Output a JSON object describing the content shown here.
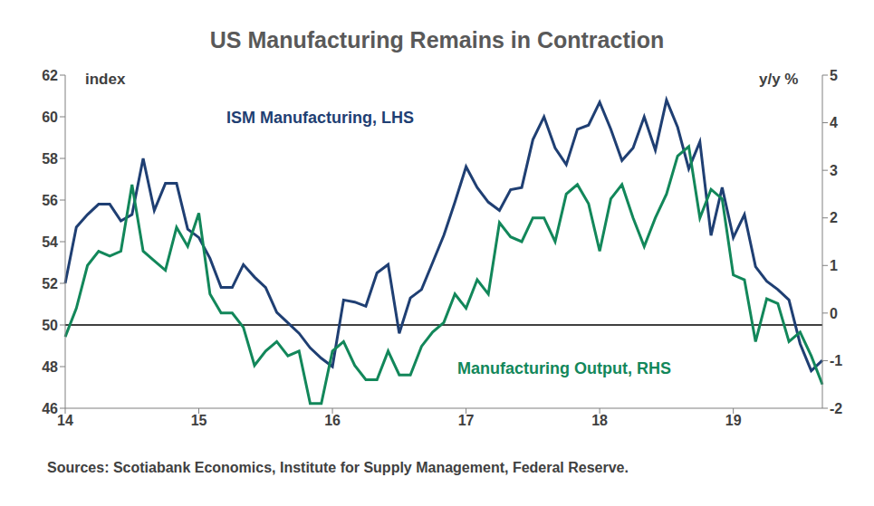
{
  "chart_data": {
    "type": "line",
    "title": "US Manufacturing Remains in Contraction",
    "y_label": "index",
    "y2_label": "y/y %",
    "source": "Sources: Scotiabank Economics, Institute for Supply Management, Federal Reserve.",
    "categories": [
      "14",
      null,
      null,
      null,
      null,
      null,
      null,
      null,
      null,
      null,
      null,
      null,
      "15",
      null,
      null,
      null,
      null,
      null,
      null,
      null,
      null,
      null,
      null,
      null,
      "16",
      null,
      null,
      null,
      null,
      null,
      null,
      null,
      null,
      null,
      null,
      null,
      "17",
      null,
      null,
      null,
      null,
      null,
      null,
      null,
      null,
      null,
      null,
      null,
      "18",
      null,
      null,
      null,
      null,
      null,
      null,
      null,
      null,
      null,
      null,
      null,
      "19",
      null,
      null,
      null,
      null,
      null,
      null,
      null,
      null
    ],
    "series": [
      {
        "name": "ISM Manufacturing, LHS",
        "color": "#1F3F73",
        "axis": "y",
        "values": [
          52.0,
          54.7,
          55.3,
          55.8,
          55.8,
          55.0,
          55.3,
          58.0,
          55.5,
          56.8,
          56.8,
          54.6,
          54.2,
          53.2,
          51.8,
          51.8,
          52.9,
          52.3,
          51.8,
          50.6,
          50.1,
          49.6,
          48.9,
          48.4,
          48.0,
          51.2,
          51.1,
          50.9,
          52.5,
          52.9,
          49.6,
          51.3,
          51.7,
          53.0,
          54.3,
          55.9,
          57.6,
          56.6,
          55.9,
          55.5,
          56.5,
          56.6,
          58.9,
          60.0,
          58.5,
          57.7,
          59.4,
          59.6,
          60.7,
          59.4,
          57.9,
          58.5,
          60.0,
          58.4,
          60.8,
          59.5,
          57.5,
          58.8,
          54.3,
          56.6,
          54.2,
          55.3,
          52.8,
          52.1,
          51.7,
          51.2,
          49.1,
          47.8,
          48.3
        ]
      },
      {
        "name": "Manufacturing Output, RHS",
        "color": "#12875A",
        "axis": "y2",
        "values": [
          -0.5,
          0.1,
          1.0,
          1.3,
          1.2,
          1.3,
          2.7,
          1.3,
          1.1,
          0.9,
          1.8,
          1.4,
          2.1,
          0.4,
          0.0,
          0.0,
          -0.3,
          -1.1,
          -0.8,
          -0.6,
          -0.9,
          -0.8,
          -1.9,
          -1.9,
          -0.8,
          -0.6,
          -1.1,
          -1.4,
          -1.4,
          -0.8,
          -1.3,
          -1.3,
          -0.7,
          -0.4,
          -0.2,
          0.4,
          0.1,
          0.7,
          0.4,
          1.9,
          1.6,
          1.5,
          2.0,
          2.0,
          1.5,
          2.5,
          2.7,
          2.3,
          1.3,
          2.4,
          2.7,
          2.0,
          1.4,
          2.0,
          2.5,
          3.3,
          3.5,
          2.0,
          2.6,
          2.4,
          0.8,
          0.7,
          -0.6,
          0.3,
          0.2,
          -0.6,
          -0.4,
          -0.9,
          -1.5
        ]
      }
    ],
    "ylim": [
      46,
      62
    ],
    "yticks": [
      46,
      48,
      50,
      52,
      54,
      56,
      58,
      60,
      62
    ],
    "y2lim": [
      -2,
      5
    ],
    "y2ticks": [
      -2,
      -1,
      0,
      1,
      2,
      3,
      4,
      5
    ],
    "reference_line": 50
  }
}
